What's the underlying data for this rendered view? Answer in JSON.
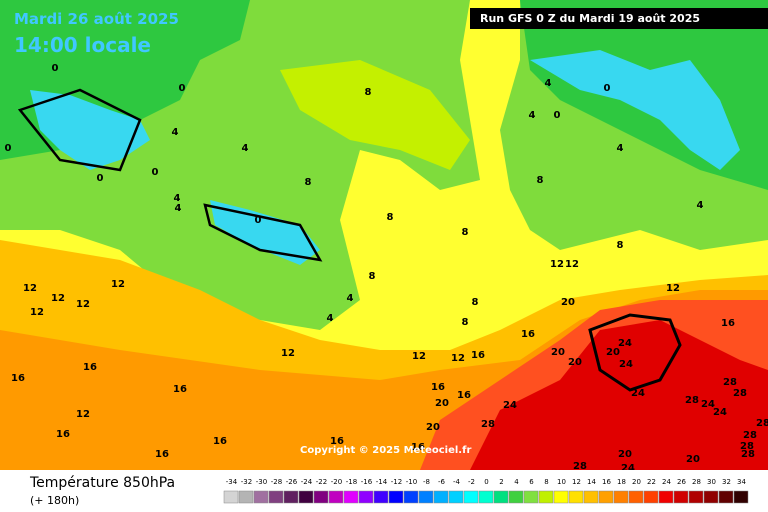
{
  "header": {
    "date": "Mardi 26 août 2025",
    "time": "14:00 locale",
    "run": "Run GFS 0 Z du Mardi 19 août 2025"
  },
  "copyright": "Copyright © 2025 Meteociel.fr",
  "legend": {
    "title": "Température 850hPa",
    "lead": "(+ 180h)",
    "values": [
      -34,
      -32,
      -30,
      -28,
      -26,
      -24,
      -22,
      -20,
      -18,
      -16,
      -14,
      -12,
      -10,
      -8,
      -6,
      -4,
      -2,
      0,
      2,
      4,
      6,
      8,
      10,
      12,
      14,
      16,
      18,
      20,
      22,
      24,
      26,
      28,
      30,
      32,
      34
    ],
    "colors": [
      "#d4d4d4",
      "#b4b4b4",
      "#a070a0",
      "#804080",
      "#602060",
      "#400040",
      "#800080",
      "#c000c0",
      "#e000ff",
      "#9000ff",
      "#4000ff",
      "#0000ff",
      "#0040ff",
      "#0080ff",
      "#00b0ff",
      "#00d0ff",
      "#00ffff",
      "#00ffd0",
      "#00e080",
      "#40d040",
      "#80e040",
      "#c0f000",
      "#ffff00",
      "#ffe000",
      "#ffc000",
      "#ffa000",
      "#ff8000",
      "#ff6000",
      "#ff4000",
      "#f00000",
      "#d00000",
      "#b00000",
      "#900000",
      "#600000",
      "#300000"
    ]
  },
  "contour_labels": [
    0,
    0,
    0,
    0,
    0,
    0,
    4,
    4,
    4,
    4,
    8,
    8,
    8,
    8,
    4,
    4,
    8,
    8,
    8,
    8,
    4,
    0,
    0,
    4,
    4,
    4,
    8,
    12,
    12,
    12,
    12,
    12,
    12,
    12,
    12,
    12,
    12,
    12,
    16,
    16,
    16,
    16,
    16,
    12,
    16,
    16,
    16,
    16,
    16,
    16,
    16,
    20,
    20,
    20,
    20,
    20,
    20,
    24,
    24,
    24,
    24,
    28,
    28,
    28,
    24,
    24,
    20,
    20,
    24,
    28,
    28,
    28,
    28,
    28,
    28,
    16
  ]
}
